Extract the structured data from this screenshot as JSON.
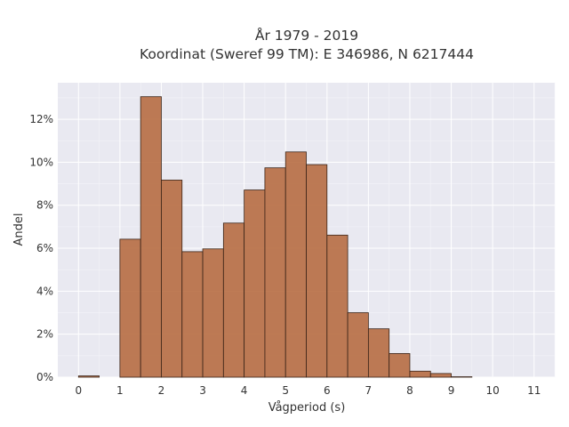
{
  "chart_data": {
    "type": "bar",
    "title": [
      "År 1979 - 2019",
      "Koordinat (Sweref 99 TM): E 346986, N 6217444"
    ],
    "xlabel": "Vågperiod (s)",
    "ylabel": "Andel",
    "xlim": [
      -0.5,
      11.5
    ],
    "ylim": [
      0,
      13.7
    ],
    "x_ticks": [
      0,
      1,
      2,
      3,
      4,
      5,
      6,
      7,
      8,
      9,
      10,
      11
    ],
    "y_ticks": [
      0,
      2,
      4,
      6,
      8,
      10,
      12
    ],
    "y_tick_labels": [
      "0%",
      "2%",
      "4%",
      "6%",
      "8%",
      "10%",
      "12%"
    ],
    "bin_width": 0.5,
    "bins": [
      {
        "x0": 0.0,
        "value": 0.06
      },
      {
        "x0": 0.5,
        "value": 0.0
      },
      {
        "x0": 1.0,
        "value": 6.42
      },
      {
        "x0": 1.5,
        "value": 13.05
      },
      {
        "x0": 2.0,
        "value": 9.17
      },
      {
        "x0": 2.5,
        "value": 5.84
      },
      {
        "x0": 3.0,
        "value": 5.97
      },
      {
        "x0": 3.5,
        "value": 7.17
      },
      {
        "x0": 4.0,
        "value": 8.71
      },
      {
        "x0": 4.5,
        "value": 9.74
      },
      {
        "x0": 5.0,
        "value": 10.48
      },
      {
        "x0": 5.5,
        "value": 9.89
      },
      {
        "x0": 6.0,
        "value": 6.61
      },
      {
        "x0": 6.5,
        "value": 3.0
      },
      {
        "x0": 7.0,
        "value": 2.25
      },
      {
        "x0": 7.5,
        "value": 1.1
      },
      {
        "x0": 8.0,
        "value": 0.28
      },
      {
        "x0": 8.5,
        "value": 0.17
      },
      {
        "x0": 9.0,
        "value": 0.02
      }
    ],
    "grid": true,
    "colors": {
      "bar": "#b5693e",
      "bar_edge": "#3a2418",
      "background": "#e9e9f1"
    }
  }
}
